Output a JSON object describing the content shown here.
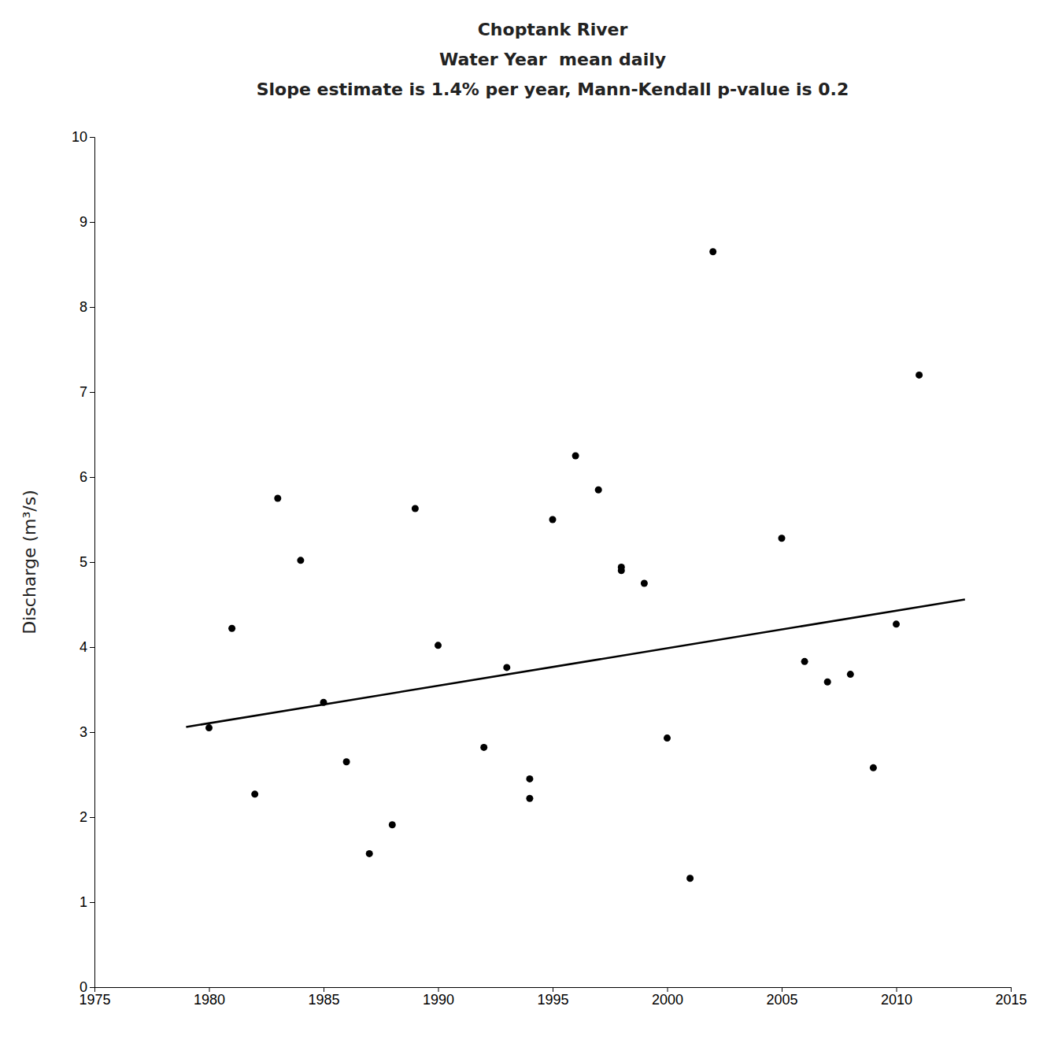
{
  "chart_data": {
    "type": "scatter",
    "title": [
      "Choptank River",
      "Water Year  mean daily",
      "Slope estimate is 1.4% per year, Mann-Kendall p-value is 0.2"
    ],
    "y_label": "Discharge (m³/s)",
    "xlim": [
      1975,
      2015
    ],
    "ylim": [
      0,
      10
    ],
    "xticks": [
      1975,
      1980,
      1985,
      1990,
      1995,
      2000,
      2005,
      2010,
      2015
    ],
    "yticks": [
      0,
      1,
      2,
      3,
      4,
      5,
      6,
      7,
      8,
      9,
      10
    ],
    "grid": false,
    "series": [
      {
        "type": "scatter",
        "color": "#000000",
        "x": [
          1980,
          1981,
          1982,
          1983,
          1984,
          1985,
          1986,
          1987,
          1988,
          1989,
          1990,
          1992,
          1993,
          1994,
          1995,
          1996,
          1997,
          1998,
          1999,
          2000,
          2002,
          2005,
          2006,
          2007,
          2008,
          2009,
          2010,
          2011
        ],
        "values": [
          3.05,
          4.22,
          2.27,
          5.75,
          5.02,
          3.35,
          2.65,
          1.57,
          1.91,
          5.63,
          4.02,
          2.82,
          3.76,
          2.22,
          5.5,
          6.25,
          5.85,
          4.94,
          4.75,
          2.93,
          8.65,
          5.28,
          3.83,
          3.59,
          3.68,
          2.58,
          4.27,
          7.2
        ]
      },
      {
        "type": "scatter",
        "color": "#000000",
        "x": [
          1994,
          1998,
          2001
        ],
        "values": [
          2.45,
          4.9,
          1.28
        ]
      },
      {
        "type": "line",
        "color": "#000000",
        "x": [
          1979,
          2013
        ],
        "values": [
          3.06,
          4.56
        ]
      }
    ]
  }
}
